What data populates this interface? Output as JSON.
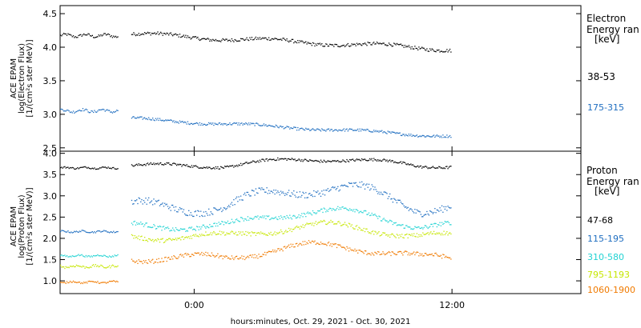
{
  "chart_data": [
    {
      "type": "scatter",
      "panel": "electron",
      "ylabel": [
        "ACE EPAM",
        "log(Electron Flux)",
        "[1/(cm²s ster MeV)]"
      ],
      "ylim": [
        2.45,
        4.62
      ],
      "yticks": [
        2.5,
        3.0,
        3.5,
        4.0,
        4.5
      ],
      "yticklabels": [
        "2.5",
        "3.0",
        "3.5",
        "4.0",
        "4.5"
      ],
      "legend_title": [
        "Electron",
        "Energy ran",
        "[keV]"
      ],
      "legend_placement": "right",
      "series": [
        {
          "name": "38-53",
          "color": "#000000",
          "segments": [
            {
              "start": -0.26,
              "end": -0.149,
              "base": 4.18,
              "amp": 0.03,
              "noise": 0.02,
              "pts": 55
            },
            {
              "start": -0.122,
              "end": 0.497,
              "base": 4.2,
              "amp": 0.05,
              "noise": 0.025,
              "pts": 320,
              "trend": -0.22
            }
          ]
        },
        {
          "name": "175-315",
          "color": "#1f6ec0",
          "segments": [
            {
              "start": -0.26,
              "end": -0.149,
              "base": 3.06,
              "amp": 0.03,
              "noise": 0.02,
              "pts": 55
            },
            {
              "start": -0.122,
              "end": 0.497,
              "base": 2.94,
              "amp": 0.03,
              "noise": 0.02,
              "pts": 320,
              "trend": -0.26
            }
          ]
        }
      ]
    },
    {
      "type": "scatter",
      "panel": "proton",
      "ylabel": [
        "ACE EPAM",
        "log(Proton Flux)",
        "[1/(cm²s ster MeV)]"
      ],
      "ylim": [
        0.7,
        4.05
      ],
      "yticks": [
        1.0,
        1.5,
        2.0,
        2.5,
        3.0,
        3.5,
        4.0
      ],
      "yticklabels": [
        "1.0",
        "1.5",
        "2.0",
        "2.5",
        "3.0",
        "3.5",
        "4.0"
      ],
      "legend_title": [
        "Proton",
        "Energy ran",
        "[keV]"
      ],
      "legend_placement": "right",
      "xlabel": "hours:minutes, Oct. 29, 2021 - Oct. 30, 2021",
      "xlim": [
        -0.26,
        0.75
      ],
      "xticks": [
        0.0,
        0.5
      ],
      "xticklabels": [
        "0:00",
        "12:00"
      ],
      "series": [
        {
          "name": "47-68",
          "color": "#000000",
          "segments": [
            {
              "start": -0.26,
              "end": -0.149,
              "base": 3.67,
              "amp": 0.02,
              "noise": 0.02,
              "pts": 55
            },
            {
              "start": -0.122,
              "end": 0.497,
              "base": 3.72,
              "amp": 0.08,
              "noise": 0.03,
              "pts": 320,
              "bump": 0.15
            }
          ]
        },
        {
          "name": "115-195",
          "color": "#1f6ec0",
          "segments": [
            {
              "start": -0.26,
              "end": -0.149,
              "base": 2.17,
              "amp": 0.02,
              "noise": 0.02,
              "pts": 55
            },
            {
              "start": -0.122,
              "end": 0.497,
              "base": 2.75,
              "amp": 0.25,
              "noise": 0.08,
              "pts": 320,
              "bump": 0.45
            }
          ]
        },
        {
          "name": "310-580",
          "color": "#22d3d3",
          "segments": [
            {
              "start": -0.26,
              "end": -0.149,
              "base": 1.6,
              "amp": 0.03,
              "noise": 0.02,
              "pts": 55
            },
            {
              "start": -0.122,
              "end": 0.497,
              "base": 2.3,
              "amp": 0.15,
              "noise": 0.05,
              "pts": 320,
              "bump": 0.35
            }
          ]
        },
        {
          "name": "795-1193",
          "color": "#c6e600",
          "segments": [
            {
              "start": -0.26,
              "end": -0.149,
              "base": 1.35,
              "amp": 0.03,
              "noise": 0.03,
              "pts": 55
            },
            {
              "start": -0.122,
              "end": 0.497,
              "base": 2.05,
              "amp": 0.15,
              "noise": 0.05,
              "pts": 320,
              "bump": 0.25
            }
          ]
        },
        {
          "name": "1060-1900",
          "color": "#f07a00",
          "segments": [
            {
              "start": -0.26,
              "end": -0.149,
              "base": 0.98,
              "amp": 0.03,
              "noise": 0.02,
              "pts": 55
            },
            {
              "start": -0.122,
              "end": 0.497,
              "base": 1.55,
              "amp": 0.15,
              "noise": 0.05,
              "pts": 320,
              "bump": 0.28
            }
          ]
        }
      ]
    }
  ]
}
